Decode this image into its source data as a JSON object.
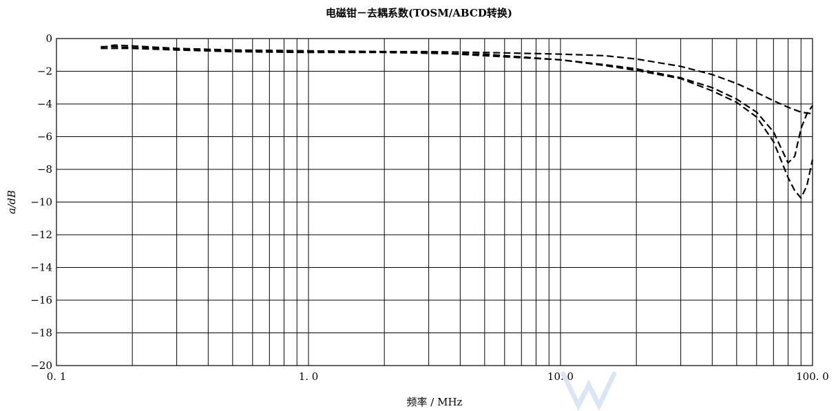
{
  "chart_data": {
    "type": "line",
    "title": "电磁钳－去耦系数(TOSM/ABCD转换)",
    "xlabel": "频率 / MHz",
    "ylabel": "a/dB",
    "x_scale": "log",
    "xlim": [
      0.1,
      100.0
    ],
    "ylim": [
      -20,
      0
    ],
    "x_ticks": [
      0.1,
      1.0,
      10.0,
      100.0
    ],
    "x_tick_labels": [
      "0. 1",
      "1. 0",
      "10. 0",
      "100. 0"
    ],
    "y_ticks": [
      0,
      -2,
      -4,
      -6,
      -8,
      -10,
      -12,
      -14,
      -16,
      -18,
      -20
    ],
    "y_tick_labels": [
      "0",
      "−2",
      "−4",
      "−6",
      "−8",
      "−10",
      "−12",
      "−14",
      "−16",
      "−18",
      "−20"
    ],
    "grid": true,
    "line_style": "dashed",
    "series": [
      {
        "x": [
          0.15,
          0.17,
          0.2,
          0.3,
          0.5,
          1.0,
          2.0,
          3.0,
          5.0,
          10.0,
          15.0,
          20.0,
          30.0,
          40.0,
          50.0,
          60.0,
          70.0,
          80.0,
          90.0,
          100.0
        ],
        "y": [
          -0.5,
          -0.5,
          -0.55,
          -0.65,
          -0.75,
          -0.8,
          -0.8,
          -0.8,
          -0.85,
          -0.95,
          -1.05,
          -1.25,
          -1.7,
          -2.2,
          -2.75,
          -3.3,
          -3.8,
          -4.2,
          -4.5,
          -4.6
        ]
      },
      {
        "x": [
          0.15,
          0.17,
          0.2,
          0.3,
          0.5,
          1.0,
          2.0,
          3.0,
          5.0,
          10.0,
          15.0,
          20.0,
          30.0,
          40.0,
          50.0,
          60.0,
          70.0,
          75.0,
          80.0,
          85.0,
          90.0,
          95.0,
          100.0
        ],
        "y": [
          -0.55,
          -0.4,
          -0.45,
          -0.6,
          -0.7,
          -0.75,
          -0.8,
          -0.85,
          -1.05,
          -1.3,
          -1.6,
          -1.85,
          -2.4,
          -3.0,
          -3.7,
          -4.5,
          -5.7,
          -6.7,
          -7.6,
          -7.2,
          -5.5,
          -4.6,
          -4.1
        ]
      },
      {
        "x": [
          0.15,
          0.17,
          0.2,
          0.3,
          0.5,
          1.0,
          2.0,
          3.0,
          5.0,
          10.0,
          15.0,
          20.0,
          30.0,
          40.0,
          50.0,
          60.0,
          70.0,
          80.0,
          85.0,
          90.0,
          95.0,
          100.0
        ],
        "y": [
          -0.6,
          -0.6,
          -0.6,
          -0.7,
          -0.8,
          -0.85,
          -0.85,
          -0.9,
          -0.95,
          -1.3,
          -1.65,
          -1.95,
          -2.45,
          -3.2,
          -3.9,
          -4.8,
          -6.3,
          -8.5,
          -9.3,
          -9.75,
          -9.0,
          -7.4
        ]
      }
    ]
  },
  "watermark_text": "WX"
}
